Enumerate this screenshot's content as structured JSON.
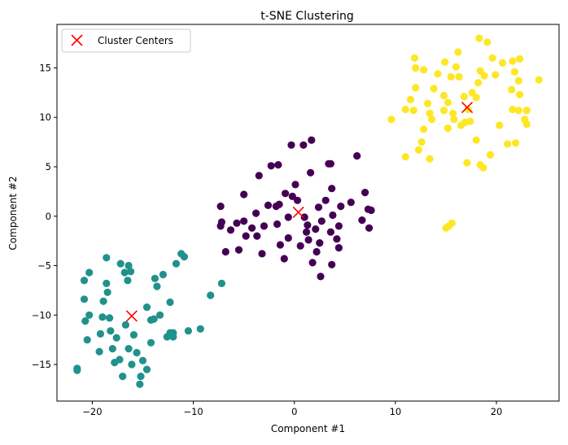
{
  "chart_data": {
    "type": "scatter",
    "title": "t-SNE Clustering",
    "xlabel": "Component #1",
    "ylabel": "Component #2",
    "xlim": [
      -23.5,
      26.2
    ],
    "ylim": [
      -18.7,
      19.4
    ],
    "xticks": [
      -20,
      -10,
      0,
      10,
      20
    ],
    "yticks": [
      -15,
      -10,
      -5,
      0,
      5,
      10,
      15
    ],
    "xtick_labels": [
      "−20",
      "−10",
      "0",
      "10",
      "20"
    ],
    "ytick_labels": [
      "−15",
      "−10",
      "−5",
      "0",
      "5",
      "10",
      "15"
    ],
    "grid": false,
    "legend": {
      "placement": "top-left",
      "entries": [
        "Cluster Centers"
      ]
    },
    "series": [
      {
        "color": "#440154",
        "points": [
          [
            -7.3,
            1.0
          ],
          [
            -7.2,
            -0.6
          ],
          [
            -7.3,
            -1.0
          ],
          [
            -6.8,
            -3.6
          ],
          [
            -6.3,
            -1.4
          ],
          [
            -5.7,
            -0.7
          ],
          [
            -5.5,
            -3.4
          ],
          [
            -5.0,
            2.2
          ],
          [
            -5.0,
            -0.5
          ],
          [
            -4.8,
            -2.0
          ],
          [
            -4.2,
            -1.2
          ],
          [
            -3.8,
            0.3
          ],
          [
            -3.7,
            -2.0
          ],
          [
            -3.5,
            4.1
          ],
          [
            -3.2,
            -3.8
          ],
          [
            -3.0,
            -1.0
          ],
          [
            -2.6,
            1.1
          ],
          [
            -2.3,
            5.1
          ],
          [
            -1.8,
            1.0
          ],
          [
            -1.7,
            -0.8
          ],
          [
            -1.6,
            5.2
          ],
          [
            -1.5,
            1.2
          ],
          [
            -1.4,
            -2.9
          ],
          [
            -1.0,
            -4.3
          ],
          [
            -0.9,
            2.3
          ],
          [
            -0.6,
            -0.1
          ],
          [
            -0.6,
            -2.2
          ],
          [
            -0.3,
            7.2
          ],
          [
            -0.2,
            2.0
          ],
          [
            0.1,
            3.2
          ],
          [
            0.3,
            1.6
          ],
          [
            0.6,
            -3.0
          ],
          [
            0.9,
            7.2
          ],
          [
            1.0,
            -0.1
          ],
          [
            1.2,
            -1.6
          ],
          [
            1.3,
            -0.9
          ],
          [
            1.4,
            -2.4
          ],
          [
            1.6,
            4.4
          ],
          [
            1.7,
            7.7
          ],
          [
            1.8,
            -4.7
          ],
          [
            2.1,
            -1.3
          ],
          [
            2.2,
            -3.6
          ],
          [
            2.4,
            0.9
          ],
          [
            2.5,
            -2.7
          ],
          [
            2.6,
            -6.1
          ],
          [
            2.7,
            -0.5
          ],
          [
            3.1,
            1.6
          ],
          [
            3.4,
            5.3
          ],
          [
            3.6,
            5.3
          ],
          [
            3.6,
            -1.6
          ],
          [
            3.7,
            2.8
          ],
          [
            3.7,
            -4.9
          ],
          [
            3.8,
            0.1
          ],
          [
            4.2,
            -2.3
          ],
          [
            4.4,
            -3.2
          ],
          [
            4.4,
            -1.0
          ],
          [
            4.6,
            1.0
          ],
          [
            5.6,
            1.4
          ],
          [
            6.2,
            6.1
          ],
          [
            6.7,
            -0.4
          ],
          [
            7.0,
            2.4
          ],
          [
            7.3,
            0.7
          ],
          [
            7.4,
            -1.2
          ],
          [
            7.6,
            0.6
          ]
        ]
      },
      {
        "color": "#21918c",
        "points": [
          [
            -21.5,
            -15.4
          ],
          [
            -21.5,
            -15.6
          ],
          [
            -20.8,
            -6.5
          ],
          [
            -20.8,
            -8.4
          ],
          [
            -20.7,
            -10.6
          ],
          [
            -20.5,
            -12.5
          ],
          [
            -20.3,
            -10.0
          ],
          [
            -20.3,
            -5.7
          ],
          [
            -19.3,
            -13.7
          ],
          [
            -19.2,
            -11.9
          ],
          [
            -19.0,
            -10.2
          ],
          [
            -18.9,
            -8.6
          ],
          [
            -18.6,
            -4.2
          ],
          [
            -18.6,
            -6.8
          ],
          [
            -18.5,
            -7.7
          ],
          [
            -18.3,
            -10.3
          ],
          [
            -18.2,
            -11.6
          ],
          [
            -18.0,
            -13.4
          ],
          [
            -17.8,
            -14.8
          ],
          [
            -17.6,
            -12.3
          ],
          [
            -17.3,
            -14.5
          ],
          [
            -17.2,
            -4.8
          ],
          [
            -17.0,
            -16.2
          ],
          [
            -16.8,
            -5.7
          ],
          [
            -16.7,
            -11.0
          ],
          [
            -16.5,
            -6.5
          ],
          [
            -16.4,
            -5.0
          ],
          [
            -16.4,
            -13.4
          ],
          [
            -16.2,
            -5.6
          ],
          [
            -16.1,
            -15.0
          ],
          [
            -15.9,
            -12.0
          ],
          [
            -15.6,
            -13.8
          ],
          [
            -15.3,
            -17.0
          ],
          [
            -15.2,
            -16.2
          ],
          [
            -15.0,
            -14.6
          ],
          [
            -14.6,
            -15.5
          ],
          [
            -14.6,
            -9.2
          ],
          [
            -14.2,
            -12.8
          ],
          [
            -14.2,
            -10.5
          ],
          [
            -13.9,
            -10.4
          ],
          [
            -13.8,
            -6.3
          ],
          [
            -13.6,
            -7.1
          ],
          [
            -13.3,
            -10.0
          ],
          [
            -13.0,
            -5.9
          ],
          [
            -12.6,
            -12.2
          ],
          [
            -12.3,
            -11.8
          ],
          [
            -12.3,
            -8.7
          ],
          [
            -12.0,
            -11.8
          ],
          [
            -12.0,
            -12.2
          ],
          [
            -11.7,
            -4.8
          ],
          [
            -11.2,
            -3.8
          ],
          [
            -10.9,
            -4.1
          ],
          [
            -10.5,
            -11.6
          ],
          [
            -9.3,
            -11.4
          ],
          [
            -8.3,
            -8.0
          ],
          [
            -7.2,
            -6.8
          ]
        ]
      },
      {
        "color": "#fde725",
        "points": [
          [
            9.6,
            9.8
          ],
          [
            11.0,
            10.8
          ],
          [
            11.0,
            6.0
          ],
          [
            11.5,
            11.8
          ],
          [
            11.8,
            10.7
          ],
          [
            11.9,
            16.0
          ],
          [
            12.0,
            13.0
          ],
          [
            12.0,
            15.0
          ],
          [
            12.3,
            6.7
          ],
          [
            12.6,
            7.5
          ],
          [
            12.8,
            8.8
          ],
          [
            12.8,
            14.8
          ],
          [
            13.2,
            11.4
          ],
          [
            13.4,
            5.8
          ],
          [
            13.4,
            10.4
          ],
          [
            13.6,
            9.8
          ],
          [
            13.8,
            12.9
          ],
          [
            14.2,
            14.4
          ],
          [
            14.8,
            12.2
          ],
          [
            14.8,
            10.7
          ],
          [
            14.9,
            15.6
          ],
          [
            15.0,
            -1.2
          ],
          [
            15.2,
            8.9
          ],
          [
            15.2,
            11.5
          ],
          [
            15.3,
            -1.0
          ],
          [
            15.5,
            14.1
          ],
          [
            15.6,
            -0.7
          ],
          [
            15.7,
            10.4
          ],
          [
            15.8,
            9.8
          ],
          [
            16.0,
            15.1
          ],
          [
            16.2,
            16.6
          ],
          [
            16.3,
            14.1
          ],
          [
            16.5,
            9.2
          ],
          [
            16.8,
            12.1
          ],
          [
            16.9,
            9.5
          ],
          [
            17.1,
            5.4
          ],
          [
            17.2,
            10.8
          ],
          [
            17.4,
            9.6
          ],
          [
            17.6,
            12.5
          ],
          [
            18.0,
            7.7
          ],
          [
            18.0,
            12.0
          ],
          [
            18.2,
            13.5
          ],
          [
            18.3,
            18.0
          ],
          [
            18.4,
            5.2
          ],
          [
            18.4,
            14.7
          ],
          [
            18.7,
            4.9
          ],
          [
            18.8,
            14.2
          ],
          [
            19.1,
            17.6
          ],
          [
            19.4,
            6.2
          ],
          [
            19.6,
            16.0
          ],
          [
            19.9,
            14.3
          ],
          [
            20.3,
            9.2
          ],
          [
            20.6,
            15.5
          ],
          [
            21.1,
            7.3
          ],
          [
            21.5,
            12.8
          ],
          [
            21.6,
            15.7
          ],
          [
            21.6,
            10.8
          ],
          [
            21.8,
            14.6
          ],
          [
            21.9,
            7.4
          ],
          [
            22.2,
            13.7
          ],
          [
            22.2,
            10.7
          ],
          [
            22.3,
            12.3
          ],
          [
            22.3,
            15.9
          ],
          [
            22.8,
            9.8
          ],
          [
            23.0,
            9.3
          ],
          [
            23.0,
            10.7
          ],
          [
            24.2,
            13.8
          ]
        ]
      }
    ],
    "centers": {
      "name": "Cluster Centers",
      "color": "#ff0000",
      "marker": "x",
      "points": [
        [
          0.4,
          0.4
        ],
        [
          -16.1,
          -10.1
        ],
        [
          17.1,
          11.0
        ]
      ]
    }
  }
}
